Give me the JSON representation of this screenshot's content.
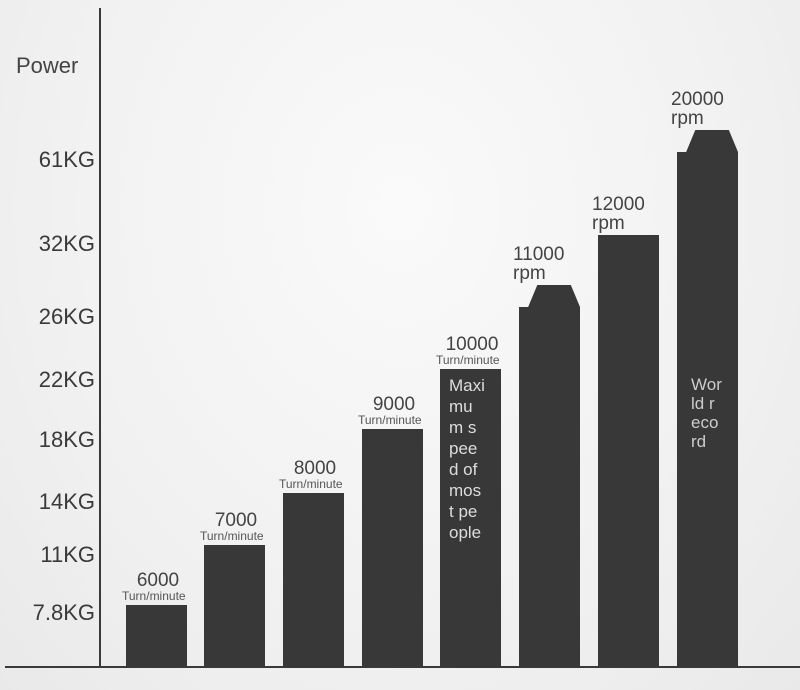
{
  "chart_data": {
    "type": "bar",
    "ylabel": "Power",
    "y_tick_labels": [
      "7.8KG",
      "11KG",
      "14KG",
      "18KG",
      "22KG",
      "26KG",
      "32KG",
      "61KG"
    ],
    "categories": [
      "6000",
      "7000",
      "8000",
      "9000",
      "10000",
      "11000",
      "12000",
      "20000"
    ],
    "units": [
      "Turn/minute",
      "Turn/minute",
      "Turn/minute",
      "Turn/minute",
      "Turn/minute",
      "rpm",
      "rpm",
      "rpm"
    ],
    "values_power": [
      "7.8KG",
      "11KG",
      "14KG",
      "18KG",
      "22KG",
      "26KG",
      "32KG",
      "61KG"
    ],
    "annotations": [
      {
        "category": "10000",
        "text": "Maximum speed of most people"
      },
      {
        "category": "20000",
        "text": "World record"
      }
    ],
    "bar_color": "#383838",
    "grid": false
  }
}
